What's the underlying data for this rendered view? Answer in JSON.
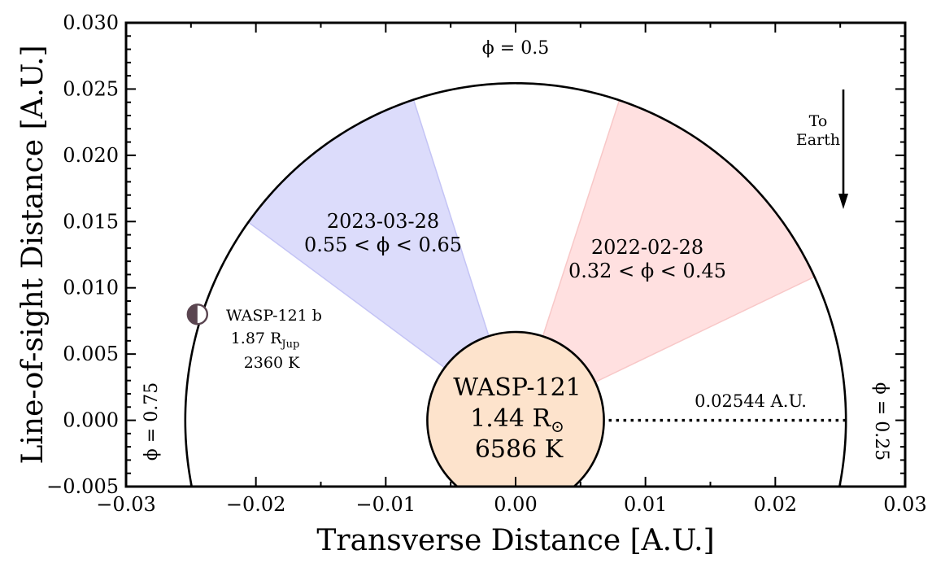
{
  "chart_data": {
    "type": "scatter",
    "title": "",
    "xlabel": "Transverse Distance [A.U.]",
    "ylabel": "Line-of-sight Distance [A.U.]",
    "xlim": [
      -0.03,
      0.03
    ],
    "ylim": [
      -0.005,
      0.03
    ],
    "x_ticks": [
      -0.03,
      -0.02,
      -0.01,
      0.0,
      0.01,
      0.02,
      0.03
    ],
    "x_tick_labels": [
      "−0.03",
      "−0.02",
      "−0.01",
      "0.00",
      "0.01",
      "0.02",
      "0.03"
    ],
    "y_ticks": [
      -0.005,
      0.0,
      0.005,
      0.01,
      0.015,
      0.02,
      0.025,
      0.03
    ],
    "y_tick_labels": [
      "−0.005",
      "0.000",
      "0.005",
      "0.010",
      "0.015",
      "0.020",
      "0.025",
      "0.030"
    ],
    "grid": false,
    "orbit": {
      "radius_au": 0.02544
    },
    "star": {
      "name": "WASP-121",
      "radius_text": "1.44 R",
      "radius_symbol": "⊙",
      "temperature": "6586 K",
      "fill_color": "#fde3cc",
      "radius_au": 0.0068
    },
    "planet": {
      "name": "WASP-121 b",
      "radius_text": "1.87 R",
      "radius_sub": "Jup",
      "temperature": "2360 K",
      "x": -0.0245,
      "y": 0.008,
      "color": "#5a4550"
    },
    "observations": [
      {
        "date": "2023-03-28",
        "phase_text": "0.55 < ϕ < 0.65",
        "phi_min": 0.55,
        "phi_max": 0.65,
        "text_color": "#0000ff",
        "fill_color": "#dcdcfb",
        "edge_color": "#c4c4f5"
      },
      {
        "date": "2022-02-28",
        "phase_text": "0.32 < ϕ < 0.45",
        "phi_min": 0.32,
        "phi_max": 0.45,
        "text_color": "#ff0000",
        "fill_color": "#ffe0e0",
        "edge_color": "#f8c8c8"
      }
    ],
    "phase_markers": [
      {
        "label": "ϕ = 0.5"
      },
      {
        "label": "ϕ = 0.75"
      },
      {
        "label": "ϕ = 0.25"
      }
    ],
    "annotations": {
      "distance_label": "0.02544 A.U.",
      "earth_line1": "To",
      "earth_line2": "Earth"
    }
  }
}
